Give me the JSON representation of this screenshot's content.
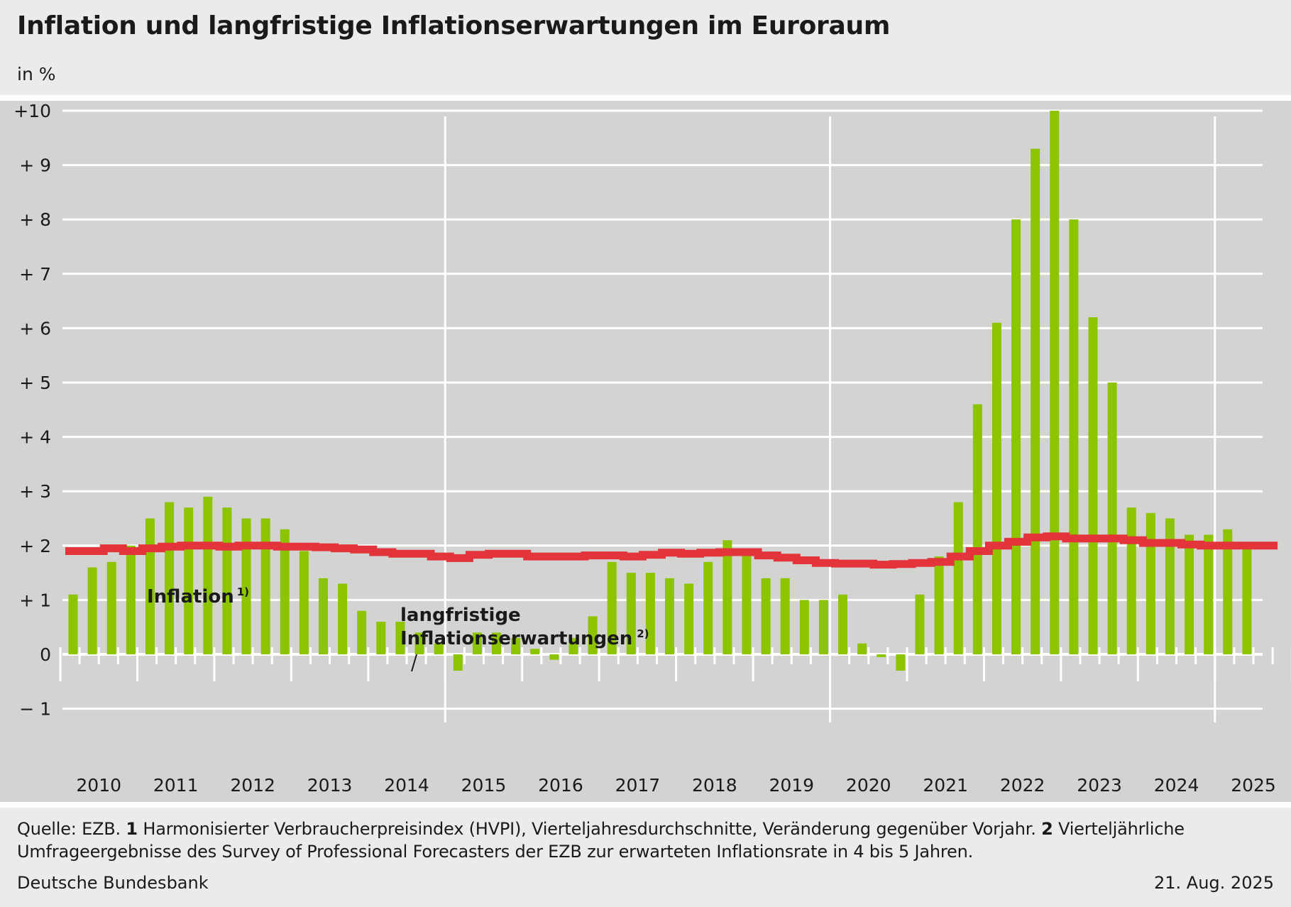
{
  "header": {
    "title": "Inflation und langfristige Inflationserwartungen im Euroraum",
    "unit": "in %"
  },
  "chart_data": {
    "type": "bar",
    "ylim": [
      -1,
      10
    ],
    "yticks": [
      {
        "value": 10,
        "label": "+10"
      },
      {
        "value": 9,
        "label": "+  9"
      },
      {
        "value": 8,
        "label": "+  8"
      },
      {
        "value": 7,
        "label": "+  7"
      },
      {
        "value": 6,
        "label": "+  6"
      },
      {
        "value": 5,
        "label": "+  5"
      },
      {
        "value": 4,
        "label": "+  4"
      },
      {
        "value": 3,
        "label": "+  3"
      },
      {
        "value": 2,
        "label": "+  2"
      },
      {
        "value": 1,
        "label": "+  1"
      },
      {
        "value": 0,
        "label": "0"
      },
      {
        "value": -1,
        "label": "−  1"
      }
    ],
    "years": [
      "2010",
      "2011",
      "2012",
      "2013",
      "2014",
      "2015",
      "2016",
      "2017",
      "2018",
      "2019",
      "2020",
      "2021",
      "2022",
      "2023",
      "2024",
      "2025"
    ],
    "major_year_lines": [
      "2015",
      "2020",
      "2025"
    ],
    "grid": true,
    "series": [
      {
        "name": "Inflation",
        "footnote_marker": "1)",
        "type": "bar",
        "color": "#8dc400",
        "values": [
          1.1,
          1.6,
          1.7,
          2.0,
          2.5,
          2.8,
          2.7,
          2.9,
          2.7,
          2.5,
          2.5,
          2.3,
          1.9,
          1.4,
          1.3,
          0.8,
          0.6,
          0.6,
          0.4,
          0.2,
          -0.3,
          0.4,
          0.4,
          0.3,
          0.1,
          -0.1,
          0.3,
          0.7,
          1.7,
          1.5,
          1.5,
          1.4,
          1.3,
          1.7,
          2.1,
          1.9,
          1.4,
          1.4,
          1.0,
          1.0,
          1.1,
          0.2,
          -0.05,
          -0.3,
          1.1,
          1.8,
          2.8,
          4.6,
          6.1,
          8.0,
          9.3,
          10.0,
          8.0,
          6.2,
          5.0,
          2.7,
          2.6,
          2.5,
          2.2,
          2.2,
          2.3,
          2.0
        ]
      },
      {
        "name": "langfristige Inflationserwartungen",
        "footnote_marker": "2)",
        "type": "step",
        "color": "#e3343b",
        "values": [
          1.9,
          1.9,
          1.95,
          1.9,
          1.95,
          1.98,
          2.0,
          2.0,
          1.98,
          2.0,
          2.0,
          1.98,
          1.98,
          1.97,
          1.95,
          1.93,
          1.88,
          1.85,
          1.85,
          1.8,
          1.77,
          1.83,
          1.85,
          1.85,
          1.8,
          1.8,
          1.8,
          1.82,
          1.82,
          1.8,
          1.83,
          1.87,
          1.85,
          1.87,
          1.88,
          1.88,
          1.82,
          1.78,
          1.73,
          1.68,
          1.67,
          1.67,
          1.65,
          1.66,
          1.68,
          1.7,
          1.8,
          1.9,
          2.0,
          2.07,
          2.15,
          2.17,
          2.13,
          2.13,
          2.13,
          2.1,
          2.05,
          2.05,
          2.02,
          2.0,
          2.0,
          2.0,
          2.0
        ]
      }
    ],
    "annotations": {
      "inflation_label": "Inflation",
      "inflation_marker": "1)",
      "expectations_label_line1": "langfristige",
      "expectations_label_line2": "Inflationserwartungen",
      "expectations_marker": "2)"
    }
  },
  "footer": {
    "source_prefix": "Quelle: EZB.",
    "note1_num": "1",
    "note1_text": "Harmonisierter Verbraucherpreisindex (HVPI), Vierteljahresdurchschnitte, Veränderung gegenüber Vorjahr.",
    "note2_num": "2",
    "note2_text": "Vierteljährliche Umfrageergebnisse des Survey of Professional Forecasters der EZB zur erwarteten Inflationsrate in 4 bis 5 Jahren.",
    "publisher": "Deutsche Bundesbank",
    "date": "21. Aug. 2025"
  }
}
